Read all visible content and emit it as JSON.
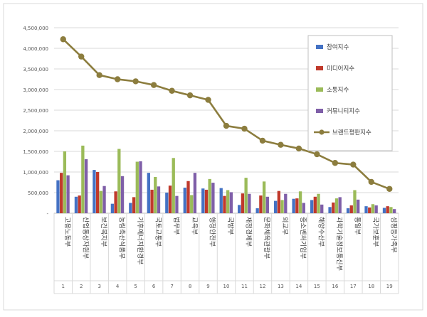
{
  "chart_data": {
    "type": "bar",
    "categories": [
      "고용노동부",
      "산업통상자원부",
      "보건복지부",
      "농림축산식품부",
      "기후에너지환경부",
      "국토교통부",
      "법무부",
      "교육부",
      "행정안전부",
      "국방부",
      "재정경제부",
      "문화체육관광부",
      "외교부",
      "중소벤처기업부",
      "해양수산부",
      "과학기술정보통신부",
      "통일부",
      "국가보훈부",
      "성평등가족부"
    ],
    "category_numbers": [
      "1",
      "2",
      "3",
      "4",
      "5",
      "6",
      "7",
      "8",
      "9",
      "10",
      "11",
      "12",
      "13",
      "14",
      "15",
      "16",
      "17",
      "18",
      "19"
    ],
    "ylim": [
      0,
      4500000
    ],
    "yticks": [
      {
        "value": 0,
        "label": "-"
      },
      {
        "value": 500000,
        "label": "500,000"
      },
      {
        "value": 1000000,
        "label": "1,000,000"
      },
      {
        "value": 1500000,
        "label": "1,500,000"
      },
      {
        "value": 2000000,
        "label": "2,000,000"
      },
      {
        "value": 2500000,
        "label": "2,500,000"
      },
      {
        "value": 3000000,
        "label": "3,000,000"
      },
      {
        "value": 3500000,
        "label": "3,500,000"
      },
      {
        "value": 4000000,
        "label": "4,000,000"
      },
      {
        "value": 4500000,
        "label": "4,500,000"
      }
    ],
    "grid": true,
    "legend_position": "right",
    "series": [
      {
        "name": "참여지수",
        "kind": "bar",
        "color": "#4472c4",
        "values": [
          800000,
          400000,
          1050000,
          230000,
          250000,
          980000,
          500000,
          620000,
          600000,
          610000,
          200000,
          120000,
          300000,
          350000,
          320000,
          150000,
          120000,
          170000,
          130000
        ]
      },
      {
        "name": "미디어지수",
        "kind": "bar",
        "color": "#c0392b",
        "values": [
          980000,
          430000,
          1000000,
          530000,
          390000,
          570000,
          670000,
          780000,
          570000,
          420000,
          480000,
          430000,
          540000,
          360000,
          400000,
          260000,
          190000,
          140000,
          170000
        ]
      },
      {
        "name": "소통지수",
        "kind": "bar",
        "color": "#9bbb59",
        "values": [
          1500000,
          1640000,
          540000,
          1560000,
          1250000,
          880000,
          1340000,
          440000,
          830000,
          560000,
          860000,
          770000,
          320000,
          530000,
          470000,
          360000,
          560000,
          220000,
          150000
        ]
      },
      {
        "name": "커뮤니티지수",
        "kind": "bar",
        "color": "#7f5fa8",
        "values": [
          920000,
          1310000,
          660000,
          900000,
          1260000,
          650000,
          420000,
          980000,
          740000,
          510000,
          470000,
          400000,
          470000,
          250000,
          210000,
          390000,
          330000,
          190000,
          100000
        ]
      },
      {
        "name": "브랜드평판지수",
        "kind": "line",
        "color": "#8c7d3e",
        "values": [
          4220000,
          3800000,
          3350000,
          3250000,
          3200000,
          3110000,
          2970000,
          2860000,
          2750000,
          2120000,
          2050000,
          1760000,
          1660000,
          1570000,
          1430000,
          1220000,
          1180000,
          760000,
          590000
        ]
      }
    ]
  }
}
